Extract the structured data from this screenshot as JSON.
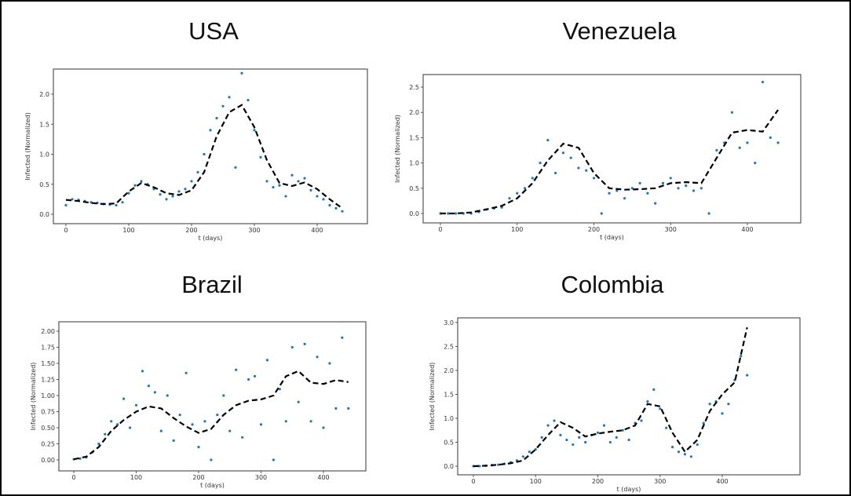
{
  "chart_data": [
    {
      "type": "scatter",
      "title": "USA",
      "xlabel": "t (days)",
      "ylabel": "Infected (Normalized)",
      "xlim": [
        -15,
        460
      ],
      "ylim": [
        -0.1,
        2.45
      ],
      "xticks": [
        "0",
        "100",
        "200",
        "300",
        "400"
      ],
      "yticks": [
        "0.0",
        "0.5",
        "1.0",
        "1.5",
        "2.0"
      ],
      "grid": false,
      "scatter_x_step": 10,
      "scatter": [
        0.15,
        0.25,
        0.24,
        0.22,
        0.2,
        0.19,
        0.17,
        0.16,
        0.15,
        0.2,
        0.35,
        0.48,
        0.55,
        0.5,
        0.42,
        0.33,
        0.25,
        0.3,
        0.38,
        0.42,
        0.55,
        0.7,
        1.0,
        1.4,
        1.6,
        1.8,
        1.95,
        0.78,
        2.35,
        1.9,
        1.4,
        0.95,
        0.55,
        0.45,
        0.48,
        0.3,
        0.65,
        0.55,
        0.6,
        0.4,
        0.3,
        0.25,
        0.15,
        0.1,
        0.05
      ],
      "fit_x_step": 20,
      "fit": [
        0.24,
        0.22,
        0.19,
        0.17,
        0.18,
        0.38,
        0.52,
        0.45,
        0.35,
        0.32,
        0.4,
        0.7,
        1.3,
        1.7,
        1.82,
        1.45,
        0.9,
        0.52,
        0.47,
        0.53,
        0.42,
        0.25,
        0.1
      ]
    },
    {
      "type": "scatter",
      "title": "Venezuela",
      "xlabel": "t (days)",
      "ylabel": "Infected (Normalized)",
      "xlim": [
        -20,
        470
      ],
      "ylim": [
        -0.15,
        2.75
      ],
      "xticks": [
        "0",
        "100",
        "200",
        "300",
        "400"
      ],
      "yticks": [
        "0.0",
        "0.5",
        "1.0",
        "1.5",
        "2.0",
        "2.5"
      ],
      "grid": false,
      "scatter_x_step": 10,
      "scatter": [
        0,
        0,
        0,
        0,
        0,
        0.03,
        0.08,
        0.1,
        0.12,
        0.3,
        0.4,
        0.5,
        0.7,
        1.0,
        1.45,
        0.8,
        1.2,
        1.1,
        0.9,
        0.85,
        0.7,
        0,
        0.4,
        0.45,
        0.3,
        0.5,
        0.6,
        0.4,
        0.2,
        0.6,
        0.7,
        0.5,
        0.55,
        0.45,
        0.5,
        0,
        1.25,
        1.4,
        2.0,
        1.3,
        1.4,
        1.0,
        2.6,
        1.5,
        1.4
      ],
      "fit_x_step": 20,
      "fit": [
        0,
        0,
        0.02,
        0.08,
        0.15,
        0.3,
        0.6,
        1.05,
        1.38,
        1.3,
        0.8,
        0.5,
        0.47,
        0.48,
        0.5,
        0.6,
        0.62,
        0.6,
        1.1,
        1.6,
        1.65,
        1.62,
        2.05
      ]
    },
    {
      "type": "scatter",
      "title": "Brazil",
      "xlabel": "t (days)",
      "ylabel": "Infected (Normalized)",
      "xlim": [
        -20,
        470
      ],
      "ylim": [
        -0.1,
        2.1
      ],
      "xticks": [
        "0",
        "100",
        "200",
        "300",
        "400"
      ],
      "yticks": [
        "0.00",
        "0.25",
        "0.50",
        "0.75",
        "1.00",
        "1.25",
        "1.50",
        "1.75",
        "2.00"
      ],
      "grid": false,
      "scatter_x_step": 10,
      "scatter": [
        0.01,
        0.02,
        0.04,
        0.12,
        0.25,
        0.4,
        0.6,
        0.55,
        0.95,
        0.5,
        0.85,
        1.38,
        1.15,
        1.05,
        0.45,
        1.0,
        0.3,
        0.7,
        1.35,
        0.55,
        0.2,
        0.6,
        0.0,
        0.7,
        1.0,
        0.45,
        1.4,
        0.35,
        1.25,
        1.3,
        0.55,
        1.55,
        0.0,
        1.1,
        0.6,
        1.75,
        0.9,
        1.8,
        0.6,
        1.6,
        0.5,
        1.5,
        0.8,
        1.9,
        0.8
      ],
      "fit_x_step": 20,
      "fit": [
        0.01,
        0.05,
        0.2,
        0.45,
        0.62,
        0.75,
        0.83,
        0.8,
        0.65,
        0.52,
        0.42,
        0.48,
        0.7,
        0.85,
        0.92,
        0.94,
        1.0,
        1.3,
        1.38,
        1.2,
        1.18,
        1.24,
        1.21
      ]
    },
    {
      "type": "scatter",
      "title": "Colombia",
      "xlabel": "t (days)",
      "ylabel": "Infected (Normalized)",
      "xlim": [
        -20,
        490
      ],
      "ylim": [
        -0.15,
        3.1
      ],
      "xticks": [
        "0",
        "100",
        "200",
        "300",
        "400"
      ],
      "yticks": [
        "0.0",
        "0.5",
        "1.0",
        "1.5",
        "2.0",
        "2.5",
        "3.0"
      ],
      "grid": false,
      "scatter_x_step": 10,
      "scatter": [
        0,
        0,
        0.01,
        0.02,
        0.03,
        0.05,
        0.08,
        0.12,
        0.2,
        0.3,
        0.35,
        0.6,
        0.85,
        0.95,
        0.65,
        0.55,
        0.45,
        0.6,
        0.5,
        0.65,
        0.7,
        0.85,
        0.5,
        0.6,
        0.75,
        0.55,
        0.9,
        0.95,
        1.35,
        1.6,
        1.2,
        0.8,
        0.4,
        0.3,
        0.25,
        0.2,
        0.45,
        0.9,
        1.3,
        1.35,
        1.1,
        1.3,
        1.8,
        2.3,
        1.9
      ],
      "fit_x_step": 20,
      "fit": [
        0,
        0.01,
        0.03,
        0.06,
        0.12,
        0.35,
        0.65,
        0.92,
        0.8,
        0.62,
        0.68,
        0.72,
        0.75,
        0.85,
        1.3,
        1.25,
        0.7,
        0.3,
        0.55,
        1.15,
        1.5,
        1.75,
        2.9
      ]
    }
  ],
  "colors": {
    "scatter": "#1f77b4",
    "fit": "#000000",
    "axes": "#555555"
  }
}
